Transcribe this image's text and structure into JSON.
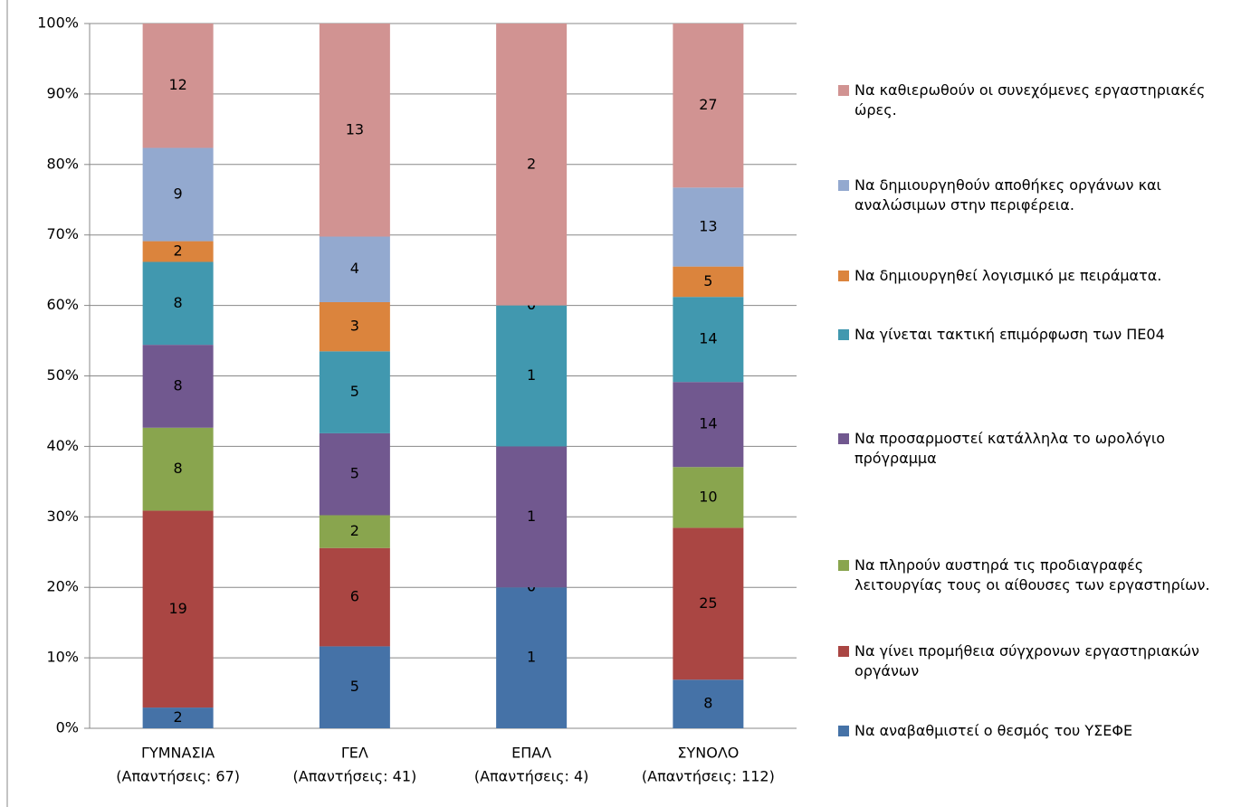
{
  "chart_data": {
    "type": "bar",
    "stacking": "percent",
    "categories": [
      [
        "ΓΥΜΝΑΣΙΑ",
        "(Απαντήσεις: 67)"
      ],
      [
        "ΓΕΛ",
        "(Απαντήσεις: 41)"
      ],
      [
        "ΕΠΑΛ",
        "(Απαντήσεις: 4)"
      ],
      [
        "ΣΥΝΟΛΟ",
        "(Απαντήσεις: 112)"
      ]
    ],
    "series": [
      {
        "name": "Να αναβαθμιστεί ο θεσμός  του ΥΣΕΦΕ",
        "color": "#4572a7",
        "values": [
          2,
          5,
          1,
          8
        ]
      },
      {
        "name": "Να γίνει προμήθεια σύγχρονων εργαστηριακών οργάνων",
        "color": "#aa4643",
        "values": [
          19,
          6,
          0,
          25
        ]
      },
      {
        "name": "Να πληρούν αυστηρά τις προδιαγραφές λειτουργίας τους οι αίθουσες των εργαστηρίων.",
        "color": "#89a54e",
        "values": [
          8,
          2,
          0,
          10
        ]
      },
      {
        "name": "Να προσαρμοστεί κατάλληλα το ωρολόγιο πρόγραμμα",
        "color": "#71588f",
        "values": [
          8,
          5,
          1,
          14
        ]
      },
      {
        "name": "Να γίνεται τακτική επιμόρφωση των ΠΕ04",
        "color": "#4198af",
        "values": [
          8,
          5,
          1,
          14
        ]
      },
      {
        "name": "Να δημιουργηθεί λογισμικό με πειράματα.",
        "color": "#db843d",
        "values": [
          2,
          3,
          0,
          5
        ]
      },
      {
        "name": "Να δημιουργηθούν αποθήκες οργάνων και αναλώσιμων στην περιφέρεια.",
        "color": "#93a9cf",
        "values": [
          9,
          4,
          0,
          13
        ]
      },
      {
        "name": "Να καθιερωθούν οι συνεχόμενες εργαστηριακές ώρες.",
        "color": "#d19392",
        "values": [
          12,
          13,
          2,
          27
        ]
      }
    ],
    "ylim": [
      0,
      100
    ],
    "yticks": [
      {
        "value": 0,
        "label": "0%"
      },
      {
        "value": 10,
        "label": "10%"
      },
      {
        "value": 20,
        "label": "20%"
      },
      {
        "value": 30,
        "label": "30%"
      },
      {
        "value": 40,
        "label": "40%"
      },
      {
        "value": 50,
        "label": "50%"
      },
      {
        "value": 60,
        "label": "60%"
      },
      {
        "value": 70,
        "label": "70%"
      },
      {
        "value": 80,
        "label": "80%"
      },
      {
        "value": 90,
        "label": "90%"
      },
      {
        "value": 100,
        "label": "100%"
      }
    ],
    "grid": true,
    "legend": "right"
  }
}
